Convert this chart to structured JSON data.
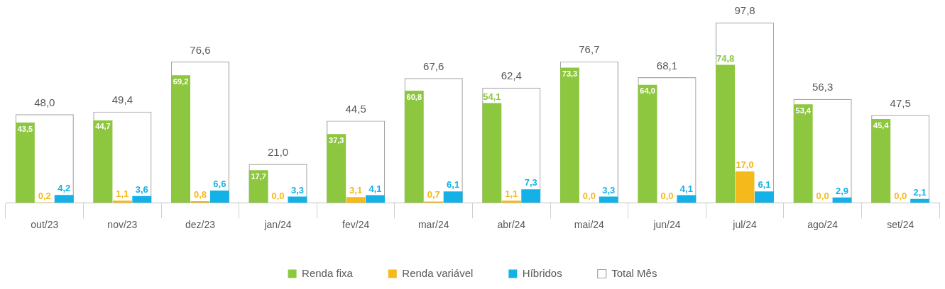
{
  "chart_data": {
    "type": "bar",
    "categories": [
      "out/23",
      "nov/23",
      "dez/23",
      "jan/24",
      "fev/24",
      "mar/24",
      "abr/24",
      "mai/24",
      "jun/24",
      "jul/24",
      "ago/24",
      "set/24"
    ],
    "series": [
      {
        "name": "Renda fixa",
        "color": "#8dc63f",
        "values": [
          43.5,
          44.7,
          69.2,
          17.7,
          37.3,
          60.8,
          54.1,
          73.3,
          64.0,
          74.8,
          53.4,
          45.4
        ],
        "value_labels": [
          "43,5",
          "44,7",
          "69,2",
          "17,7",
          "37,3",
          "60,8",
          "54,1",
          "73,3",
          "64,0",
          "74,8",
          "53,4",
          "45,4"
        ]
      },
      {
        "name": "Renda variável",
        "color": "#f5b91b",
        "values": [
          0.2,
          1.1,
          0.8,
          0.0,
          3.1,
          0.7,
          1.1,
          0.0,
          0.0,
          17.0,
          0.0,
          0.0
        ],
        "value_labels": [
          "0,2",
          "1,1",
          "0,8",
          "0,0",
          "3,1",
          "0,7",
          "1,1",
          "0,0",
          "0,0",
          "17,0",
          "0,0",
          "0,0"
        ]
      },
      {
        "name": "Híbridos",
        "color": "#14b1e7",
        "values": [
          4.2,
          3.6,
          6.6,
          3.3,
          4.1,
          6.1,
          7.3,
          3.3,
          4.1,
          6.1,
          2.9,
          2.1
        ],
        "value_labels": [
          "4,2",
          "3,6",
          "6,6",
          "3,3",
          "4,1",
          "6,1",
          "7,3",
          "3,3",
          "4,1",
          "6,1",
          "2,9",
          "2,1"
        ]
      },
      {
        "name": "Total Mês",
        "color": "#a6a6a6",
        "line_style": "dashed",
        "values": [
          48.0,
          49.4,
          76.6,
          21.0,
          44.5,
          67.6,
          62.4,
          76.7,
          68.1,
          97.8,
          56.3,
          47.5
        ],
        "value_labels": [
          "48,0",
          "49,4",
          "76,6",
          "21,0",
          "44,5",
          "67,6",
          "62,4",
          "76,7",
          "68,1",
          "97,8",
          "56,3",
          "47,5"
        ]
      }
    ],
    "legend": "bottom",
    "tick_labels": "x"
  }
}
